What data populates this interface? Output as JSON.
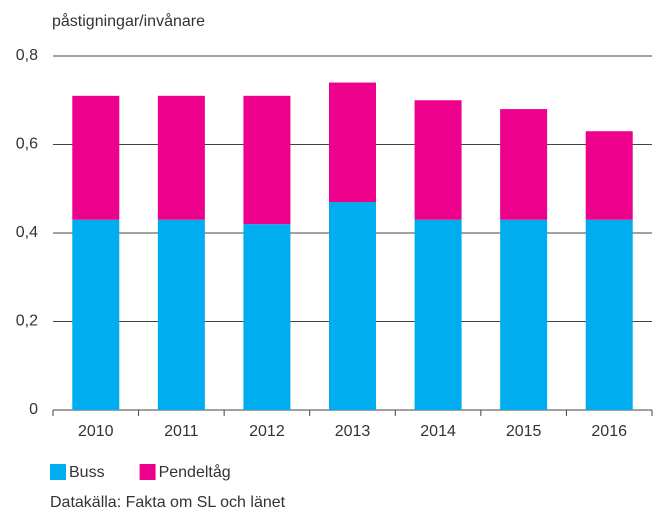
{
  "chart_data": {
    "type": "stacked_bar",
    "y_axis_label": "påstigningar/invånare",
    "categories": [
      "2010",
      "2011",
      "2012",
      "2013",
      "2014",
      "2015",
      "2016"
    ],
    "series": [
      {
        "name": "Buss",
        "color": "#00aeef",
        "values": [
          0.43,
          0.43,
          0.42,
          0.47,
          0.43,
          0.43,
          0.43
        ]
      },
      {
        "name": "Pendeltåg",
        "color": "#ec008c",
        "values": [
          0.28,
          0.28,
          0.29,
          0.27,
          0.27,
          0.25,
          0.2
        ]
      }
    ],
    "ylim": [
      0,
      0.8
    ],
    "yticks": [
      0,
      {
        "value": 0.2,
        "label": "0,2"
      },
      {
        "value": 0.4,
        "label": "0,4"
      },
      {
        "value": 0.6,
        "label": "0,6"
      },
      {
        "value": 0.8,
        "label": "0,8"
      }
    ],
    "grid": true,
    "source": "Datakälla: Fakta om SL och länet"
  }
}
